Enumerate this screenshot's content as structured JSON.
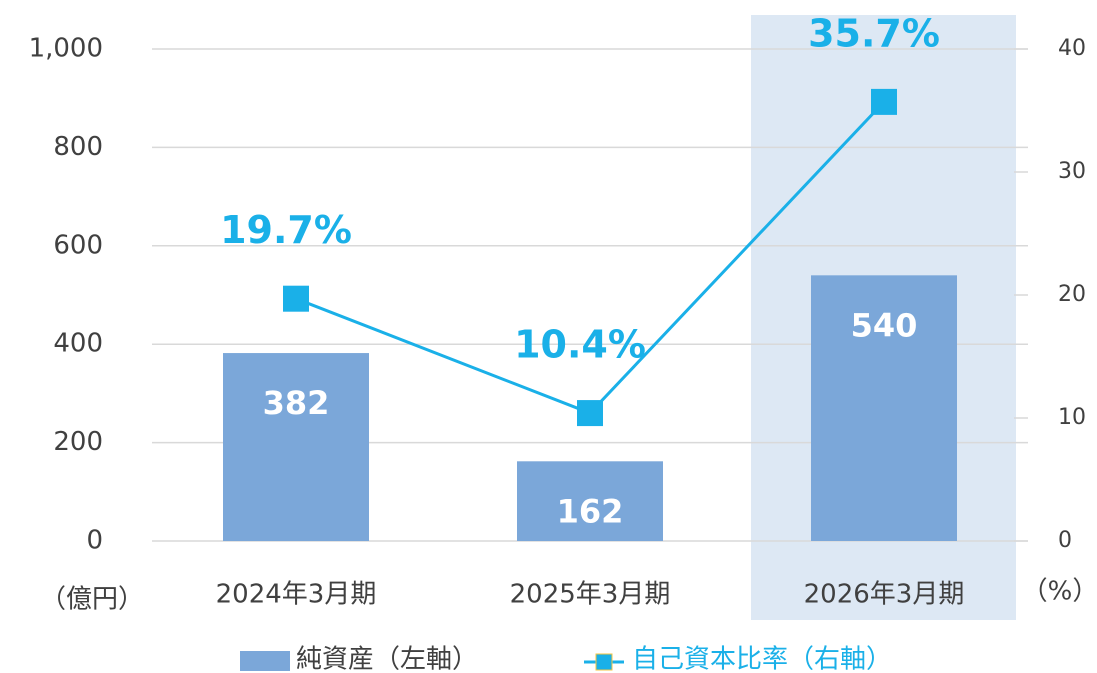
{
  "chart_data": {
    "type": "bar_line",
    "categories": [
      "2024年3月期",
      "2025年3月期",
      "2026年3月期"
    ],
    "series": [
      {
        "name": "純資産（左軸）",
        "type": "bar",
        "color": "#7ba7d9",
        "values": [
          382,
          162,
          540
        ]
      },
      {
        "name": "自己資本比率（右軸）",
        "type": "line",
        "axis": "y2",
        "color": "#1ab0e8",
        "values": [
          19.7,
          10.4,
          35.7
        ],
        "value_labels": [
          "19.7%",
          "10.4%",
          "35.7%"
        ]
      }
    ],
    "ylabel": "（億円）",
    "y2label": "（%）",
    "ylim": [
      0,
      1000
    ],
    "yticks": [
      0,
      200,
      400,
      600,
      800,
      {
        "value": 1000,
        "label": "1,000"
      }
    ],
    "y2lim": [
      0,
      40
    ],
    "y2ticks": [
      0,
      10,
      20,
      30,
      40
    ],
    "grid": true,
    "highlight": 2,
    "legend": "bottom"
  }
}
